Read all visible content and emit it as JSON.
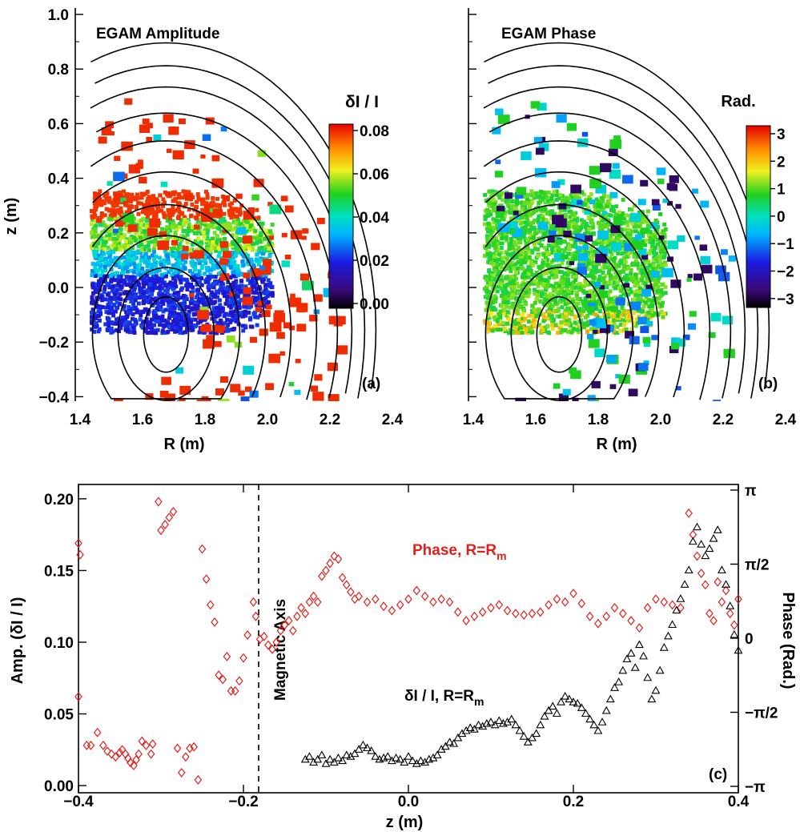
{
  "panel_a": {
    "title": "EGAM Amplitude",
    "tag": "(a)",
    "xlabel": "R (m)",
    "ylabel": "z (m)",
    "colorbar_title": "δI / I",
    "colorbar_ticks": [
      "0.08",
      "0.06",
      "0.04",
      "0.02",
      "0.00"
    ]
  },
  "panel_b": {
    "title": "EGAM Phase",
    "tag": "(b)",
    "xlabel": "R (m)",
    "colorbar_title": "Rad.",
    "colorbar_ticks": [
      "3",
      "2",
      "1",
      "0",
      "−1",
      "−2",
      "−3"
    ]
  },
  "panel_c": {
    "tag": "(c)",
    "xlabel": "z (m)",
    "ylabel_left": "Amp. (δI / I)",
    "ylabel_right": "Phase (Rad.)",
    "axis_annotation": "Magnetic Axis",
    "phase_label": "Phase, R=R",
    "phase_label_sub": "m",
    "amp_label": "δI / I, R=R",
    "amp_label_sub": "m"
  },
  "colors": {
    "phase_series": "#e0201a",
    "amp_series": "#000000"
  },
  "chart_data": [
    {
      "type": "heatmap",
      "title": "EGAM Amplitude",
      "xlabel": "R (m)",
      "ylabel": "z (m)",
      "x_ticks": [
        "1.4",
        "1.6",
        "1.8",
        "2.0",
        "2.2",
        "2.4"
      ],
      "y_ticks": [
        "1.0",
        "0.8",
        "0.6",
        "0.4",
        "0.2",
        "0.0",
        "−0.2",
        "−0.4"
      ],
      "xlim": [
        1.4,
        2.4
      ],
      "ylim": [
        -0.42,
        1.02
      ],
      "colorbar": {
        "label": "δI / I",
        "range": [
          0.0,
          0.08
        ]
      },
      "flux_surface_center": [
        1.665,
        -0.175
      ]
    },
    {
      "type": "heatmap",
      "title": "EGAM Phase",
      "xlabel": "R (m)",
      "x_ticks": [
        "1.4",
        "1.6",
        "1.8",
        "2.0",
        "2.2",
        "2.4"
      ],
      "xlim": [
        1.4,
        2.4
      ],
      "ylim": [
        -0.42,
        1.02
      ],
      "colorbar": {
        "label": "Rad.",
        "range": [
          -3.2,
          3.2
        ]
      }
    },
    {
      "type": "scatter",
      "xlabel": "z (m)",
      "ylabel": "Amp. (δI / I)",
      "y2label": "Phase (Rad.)",
      "xlim": [
        -0.4,
        0.4
      ],
      "ylim": [
        -0.005,
        0.21
      ],
      "y2lim": [
        -3.14159,
        3.14159
      ],
      "x_ticks": [
        "−0.4",
        "−0.2",
        "0.0",
        "0.2",
        "0.4"
      ],
      "y_ticks": [
        "0.00",
        "0.05",
        "0.10",
        "0.15",
        "0.20"
      ],
      "y2_ticks": [
        "π",
        "π/2",
        "0",
        "−π/2",
        "−π"
      ],
      "vline_x": -0.185,
      "series": [
        {
          "name": "Phase, R=Rm",
          "marker": "diamond",
          "axis": "left",
          "points": [
            [
              -0.4,
              0.169
            ],
            [
              -0.398,
              0.161
            ],
            [
              -0.4,
              0.062
            ],
            [
              -0.39,
              0.028
            ],
            [
              -0.385,
              0.028
            ],
            [
              -0.377,
              0.037
            ],
            [
              -0.37,
              0.028
            ],
            [
              -0.365,
              0.024
            ],
            [
              -0.36,
              0.022
            ],
            [
              -0.355,
              0.02
            ],
            [
              -0.35,
              0.023
            ],
            [
              -0.347,
              0.025
            ],
            [
              -0.343,
              0.022
            ],
            [
              -0.34,
              0.019
            ],
            [
              -0.337,
              0.016
            ],
            [
              -0.333,
              0.014
            ],
            [
              -0.33,
              0.018
            ],
            [
              -0.327,
              0.022
            ],
            [
              -0.323,
              0.031
            ],
            [
              -0.318,
              0.028
            ],
            [
              -0.312,
              0.022
            ],
            [
              -0.31,
              0.029
            ],
            [
              -0.303,
              0.198
            ],
            [
              -0.3,
              0.178
            ],
            [
              -0.295,
              0.182
            ],
            [
              -0.29,
              0.187
            ],
            [
              -0.285,
              0.191
            ],
            [
              -0.28,
              0.026
            ],
            [
              -0.275,
              0.009
            ],
            [
              -0.27,
              0.02
            ],
            [
              -0.265,
              0.026
            ],
            [
              -0.26,
              0.027
            ],
            [
              -0.255,
              0.004
            ],
            [
              -0.25,
              0.165
            ],
            [
              -0.245,
              0.144
            ],
            [
              -0.24,
              0.126
            ],
            [
              -0.235,
              0.114
            ],
            [
              -0.23,
              0.077
            ],
            [
              -0.225,
              0.074
            ],
            [
              -0.22,
              0.09
            ],
            [
              -0.215,
              0.066
            ],
            [
              -0.21,
              0.066
            ],
            [
              -0.205,
              0.073
            ],
            [
              -0.2,
              0.089
            ],
            [
              -0.195,
              0.105
            ],
            [
              -0.188,
              0.128
            ],
            [
              -0.185,
              0.118
            ],
            [
              -0.18,
              0.102
            ],
            [
              -0.175,
              0.104
            ],
            [
              -0.17,
              0.098
            ],
            [
              -0.165,
              0.095
            ],
            [
              -0.16,
              0.1
            ],
            [
              -0.155,
              0.108
            ],
            [
              -0.15,
              0.112
            ],
            [
              -0.145,
              0.115
            ],
            [
              -0.14,
              0.108
            ],
            [
              -0.135,
              0.118
            ],
            [
              -0.13,
              0.124
            ],
            [
              -0.125,
              0.12
            ],
            [
              -0.12,
              0.128
            ],
            [
              -0.115,
              0.132
            ],
            [
              -0.11,
              0.128
            ],
            [
              -0.105,
              0.146
            ],
            [
              -0.1,
              0.15
            ],
            [
              -0.095,
              0.155
            ],
            [
              -0.09,
              0.16
            ],
            [
              -0.085,
              0.158
            ],
            [
              -0.08,
              0.145
            ],
            [
              -0.075,
              0.14
            ],
            [
              -0.07,
              0.135
            ],
            [
              -0.065,
              0.13
            ],
            [
              -0.06,
              0.132
            ],
            [
              -0.05,
              0.128
            ],
            [
              -0.04,
              0.13
            ],
            [
              -0.03,
              0.125
            ],
            [
              -0.02,
              0.122
            ],
            [
              -0.01,
              0.126
            ],
            [
              0.0,
              0.13
            ],
            [
              0.01,
              0.136
            ],
            [
              0.02,
              0.132
            ],
            [
              0.03,
              0.128
            ],
            [
              0.04,
              0.13
            ],
            [
              0.05,
              0.128
            ],
            [
              0.06,
              0.121
            ],
            [
              0.07,
              0.115
            ],
            [
              0.08,
              0.118
            ],
            [
              0.09,
              0.121
            ],
            [
              0.1,
              0.124
            ],
            [
              0.11,
              0.126
            ],
            [
              0.12,
              0.122
            ],
            [
              0.13,
              0.12
            ],
            [
              0.14,
              0.119
            ],
            [
              0.15,
              0.12
            ],
            [
              0.16,
              0.121
            ],
            [
              0.17,
              0.126
            ],
            [
              0.18,
              0.13
            ],
            [
              0.19,
              0.128
            ],
            [
              0.2,
              0.134
            ],
            [
              0.21,
              0.127
            ],
            [
              0.22,
              0.118
            ],
            [
              0.23,
              0.113
            ],
            [
              0.24,
              0.118
            ],
            [
              0.25,
              0.124
            ],
            [
              0.26,
              0.12
            ],
            [
              0.27,
              0.115
            ],
            [
              0.28,
              0.11
            ],
            [
              0.29,
              0.124
            ],
            [
              0.3,
              0.13
            ],
            [
              0.31,
              0.128
            ],
            [
              0.32,
              0.126
            ],
            [
              0.33,
              0.124
            ],
            [
              0.34,
              0.19
            ],
            [
              0.345,
              0.175
            ],
            [
              0.35,
              0.16
            ],
            [
              0.355,
              0.148
            ],
            [
              0.36,
              0.14
            ],
            [
              0.365,
              0.12
            ],
            [
              0.37,
              0.115
            ],
            [
              0.375,
              0.142
            ],
            [
              0.38,
              0.128
            ],
            [
              0.385,
              0.136
            ],
            [
              0.39,
              0.12
            ],
            [
              0.395,
              0.112
            ],
            [
              0.4,
              0.13
            ]
          ]
        },
        {
          "name": "δI / I, R=Rm",
          "marker": "triangle",
          "axis": "left",
          "points": [
            [
              -0.125,
              0.018
            ],
            [
              -0.12,
              0.02
            ],
            [
              -0.115,
              0.016
            ],
            [
              -0.11,
              0.018
            ],
            [
              -0.105,
              0.021
            ],
            [
              -0.1,
              0.015
            ],
            [
              -0.095,
              0.018
            ],
            [
              -0.09,
              0.016
            ],
            [
              -0.085,
              0.019
            ],
            [
              -0.08,
              0.017
            ],
            [
              -0.075,
              0.021
            ],
            [
              -0.07,
              0.02
            ],
            [
              -0.065,
              0.022
            ],
            [
              -0.06,
              0.025
            ],
            [
              -0.055,
              0.028
            ],
            [
              -0.05,
              0.026
            ],
            [
              -0.045,
              0.024
            ],
            [
              -0.04,
              0.02
            ],
            [
              -0.035,
              0.018
            ],
            [
              -0.03,
              0.019
            ],
            [
              -0.025,
              0.02
            ],
            [
              -0.02,
              0.017
            ],
            [
              -0.015,
              0.019
            ],
            [
              -0.01,
              0.018
            ],
            [
              -0.005,
              0.016
            ],
            [
              0.0,
              0.02
            ],
            [
              0.005,
              0.017
            ],
            [
              0.01,
              0.015
            ],
            [
              0.015,
              0.017
            ],
            [
              0.02,
              0.016
            ],
            [
              0.025,
              0.018
            ],
            [
              0.03,
              0.019
            ],
            [
              0.035,
              0.021
            ],
            [
              0.04,
              0.025
            ],
            [
              0.045,
              0.027
            ],
            [
              0.05,
              0.03
            ],
            [
              0.055,
              0.029
            ],
            [
              0.06,
              0.033
            ],
            [
              0.065,
              0.036
            ],
            [
              0.07,
              0.038
            ],
            [
              0.075,
              0.04
            ],
            [
              0.08,
              0.039
            ],
            [
              0.085,
              0.042
            ],
            [
              0.09,
              0.041
            ],
            [
              0.095,
              0.043
            ],
            [
              0.1,
              0.044
            ],
            [
              0.105,
              0.042
            ],
            [
              0.11,
              0.045
            ],
            [
              0.115,
              0.043
            ],
            [
              0.12,
              0.044
            ],
            [
              0.125,
              0.046
            ],
            [
              0.13,
              0.042
            ],
            [
              0.135,
              0.038
            ],
            [
              0.14,
              0.034
            ],
            [
              0.145,
              0.03
            ],
            [
              0.15,
              0.033
            ],
            [
              0.155,
              0.036
            ],
            [
              0.16,
              0.042
            ],
            [
              0.165,
              0.048
            ],
            [
              0.17,
              0.052
            ],
            [
              0.175,
              0.055
            ],
            [
              0.18,
              0.05
            ],
            [
              0.185,
              0.058
            ],
            [
              0.19,
              0.062
            ],
            [
              0.195,
              0.06
            ],
            [
              0.2,
              0.058
            ],
            [
              0.205,
              0.057
            ],
            [
              0.21,
              0.054
            ],
            [
              0.215,
              0.05
            ],
            [
              0.22,
              0.046
            ],
            [
              0.225,
              0.042
            ],
            [
              0.23,
              0.038
            ],
            [
              0.235,
              0.044
            ],
            [
              0.24,
              0.052
            ],
            [
              0.245,
              0.06
            ],
            [
              0.25,
              0.068
            ],
            [
              0.255,
              0.072
            ],
            [
              0.26,
              0.08
            ],
            [
              0.265,
              0.088
            ],
            [
              0.27,
              0.092
            ],
            [
              0.275,
              0.082
            ],
            [
              0.28,
              0.098
            ],
            [
              0.285,
              0.09
            ],
            [
              0.29,
              0.075
            ],
            [
              0.295,
              0.06
            ],
            [
              0.3,
              0.066
            ],
            [
              0.305,
              0.08
            ],
            [
              0.31,
              0.096
            ],
            [
              0.315,
              0.104
            ],
            [
              0.32,
              0.112
            ],
            [
              0.325,
              0.122
            ],
            [
              0.33,
              0.13
            ],
            [
              0.335,
              0.14
            ],
            [
              0.34,
              0.15
            ],
            [
              0.345,
              0.17
            ],
            [
              0.35,
              0.18
            ],
            [
              0.355,
              0.168
            ],
            [
              0.36,
              0.16
            ],
            [
              0.365,
              0.165
            ],
            [
              0.37,
              0.172
            ],
            [
              0.375,
              0.178
            ],
            [
              0.38,
              0.15
            ],
            [
              0.385,
              0.14
            ],
            [
              0.39,
              0.125
            ],
            [
              0.395,
              0.105
            ],
            [
              0.4,
              0.094
            ]
          ]
        }
      ]
    }
  ]
}
